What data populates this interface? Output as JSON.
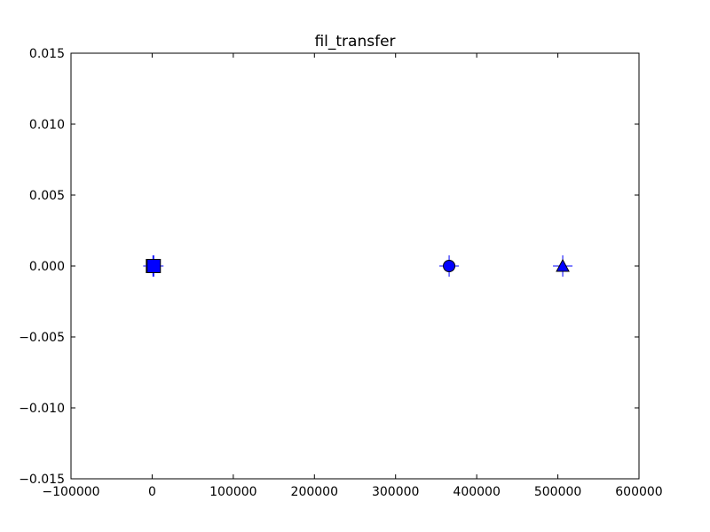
{
  "chart_data": {
    "type": "scatter",
    "title": "fil_transfer",
    "xlabel": "",
    "ylabel": "",
    "xlim": [
      -100000,
      600000
    ],
    "ylim": [
      -0.015,
      0.015
    ],
    "xticks": [
      -100000,
      0,
      100000,
      200000,
      300000,
      400000,
      500000,
      600000
    ],
    "yticks": [
      -0.015,
      -0.01,
      -0.005,
      0.0,
      0.005,
      0.01,
      0.015
    ],
    "xtick_labels": [
      "−100000",
      "0",
      "100000",
      "200000",
      "300000",
      "400000",
      "500000",
      "600000"
    ],
    "ytick_labels": [
      "−0.015",
      "−0.010",
      "−0.005",
      "0.000",
      "0.005",
      "0.010",
      "0.015"
    ],
    "grid": false,
    "points": [
      {
        "x": 1000,
        "y": 0.0,
        "marker": "square",
        "color": "#000000",
        "error": true
      },
      {
        "x": 2000,
        "y": 0.0,
        "marker": "square",
        "color": "#0000ff",
        "error": true
      },
      {
        "x": 366000,
        "y": 0.0,
        "marker": "circle",
        "color": "#0000ff",
        "error": true
      },
      {
        "x": 506000,
        "y": 0.0,
        "marker": "triangle",
        "color": "#0000ff",
        "error": true
      }
    ]
  }
}
